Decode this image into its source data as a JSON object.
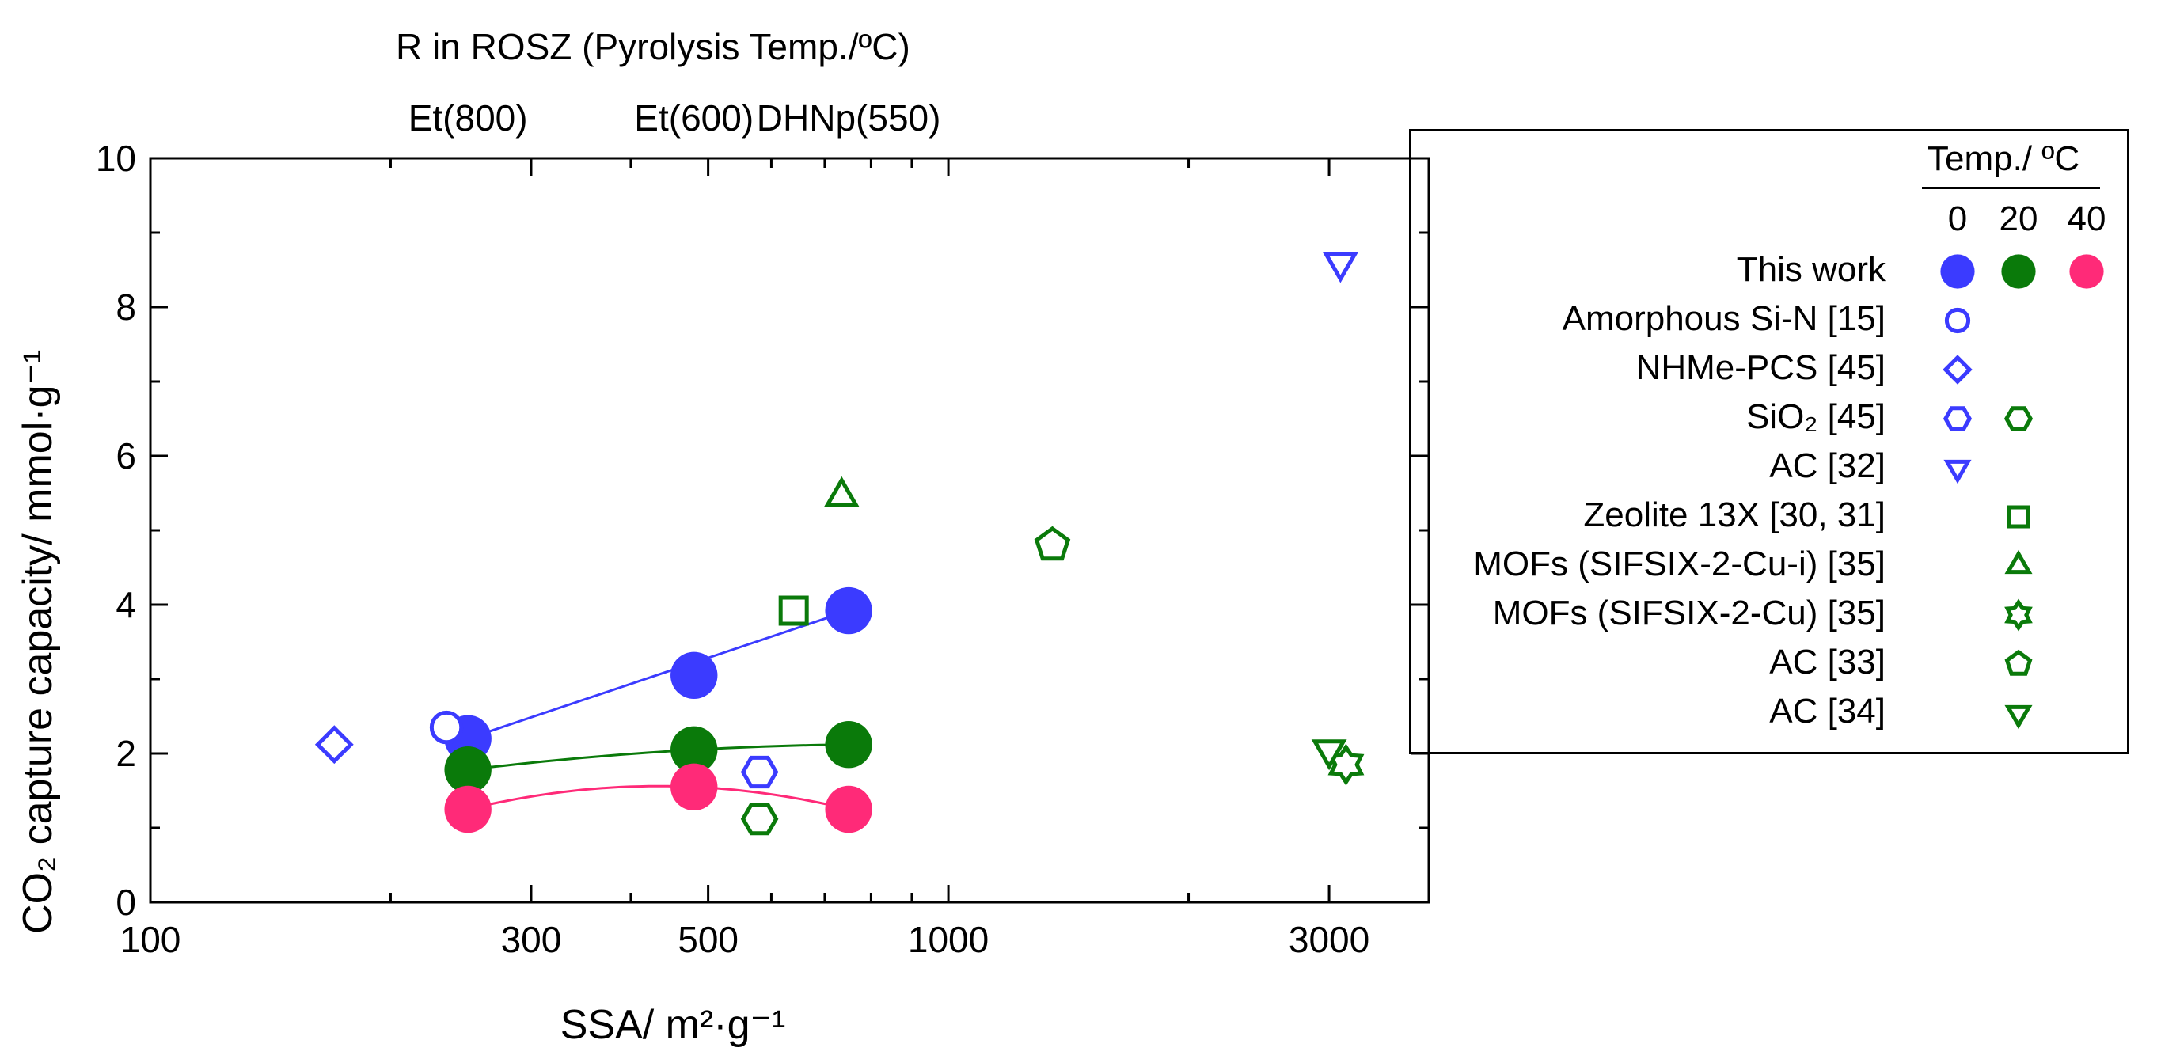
{
  "chart_data": {
    "type": "scatter",
    "x_scale": "log",
    "xlim": [
      100,
      4000
    ],
    "ylim": [
      0,
      10
    ],
    "xlabel": "SSA/ m²·g⁻¹",
    "ylabel": "CO₂ capture capacity/ mmol·g⁻¹",
    "x_ticks": [
      "100",
      "300",
      "500",
      "1000",
      "3000"
    ],
    "x_tick_values": [
      100,
      300,
      500,
      1000,
      3000
    ],
    "y_ticks": [
      "0",
      "2",
      "4",
      "6",
      "8",
      "10"
    ],
    "y_tick_values": [
      0,
      2,
      4,
      6,
      8,
      10
    ],
    "top_axis": {
      "title": "R in ROSZ (Pyrolysis Temp./ºC)",
      "labels": [
        "Et(800)",
        "Et(600)",
        "DHNp(550)"
      ],
      "positions": [
        250,
        480,
        750
      ]
    },
    "series": [
      {
        "name": "This work",
        "group": "0",
        "marker": "filled-circle",
        "color": "#3b3bff",
        "x": [
          250,
          480,
          750
        ],
        "y": [
          2.2,
          3.05,
          3.92
        ],
        "fit": "line"
      },
      {
        "name": "This work",
        "group": "20",
        "marker": "filled-circle",
        "color": "#0a7a0a",
        "x": [
          250,
          480,
          750
        ],
        "y": [
          1.78,
          2.05,
          2.12
        ],
        "fit": "curve"
      },
      {
        "name": "This work",
        "group": "40",
        "marker": "filled-circle",
        "color": "#ff2a78",
        "x": [
          250,
          480,
          750
        ],
        "y": [
          1.25,
          1.55,
          1.25
        ],
        "fit": "curve"
      },
      {
        "name": "Amorphous Si-N [15]",
        "group": "0",
        "marker": "circle",
        "color": "#3b3bff",
        "x": [
          235
        ],
        "y": [
          2.35
        ]
      },
      {
        "name": "NHMe-PCS [45]",
        "group": "0",
        "marker": "diamond",
        "color": "#3b3bff",
        "x": [
          170
        ],
        "y": [
          2.12
        ]
      },
      {
        "name": "SiO2 [45]",
        "group": "0",
        "marker": "hexagon",
        "color": "#3b3bff",
        "x": [
          580
        ],
        "y": [
          1.75
        ]
      },
      {
        "name": "SiO2 [45]",
        "group": "20",
        "marker": "hexagon",
        "color": "#0a7a0a",
        "x": [
          580
        ],
        "y": [
          1.12
        ]
      },
      {
        "name": "AC [32]",
        "group": "0",
        "marker": "triangle-down",
        "color": "#3b3bff",
        "x": [
          3100
        ],
        "y": [
          8.6
        ]
      },
      {
        "name": "Zeolite 13X [30, 31]",
        "group": "20",
        "marker": "square",
        "color": "#0a7a0a",
        "x": [
          640
        ],
        "y": [
          3.92
        ]
      },
      {
        "name": "MOFs (SIFSIX-2-Cu-i) [35]",
        "group": "20",
        "marker": "triangle-up",
        "color": "#0a7a0a",
        "x": [
          735
        ],
        "y": [
          5.45
        ]
      },
      {
        "name": "MOFs (SIFSIX-2-Cu) [35]",
        "group": "20",
        "marker": "star6",
        "color": "#0a7a0a",
        "x": [
          3150
        ],
        "y": [
          1.85
        ]
      },
      {
        "name": "AC [33]",
        "group": "20",
        "marker": "pentagon",
        "color": "#0a7a0a",
        "x": [
          1350
        ],
        "y": [
          4.8
        ]
      },
      {
        "name": "AC [34]",
        "group": "20",
        "marker": "triangle-down",
        "color": "#0a7a0a",
        "x": [
          3000
        ],
        "y": [
          2.05
        ]
      }
    ]
  },
  "legend": {
    "header": "Temp./ ºC",
    "columns": [
      "0",
      "20",
      "40"
    ],
    "rows": [
      {
        "label": "This work",
        "symbols": [
          {
            "col": 0,
            "marker": "filled-circle",
            "color": "#3b3bff"
          },
          {
            "col": 1,
            "marker": "filled-circle",
            "color": "#0a7a0a"
          },
          {
            "col": 2,
            "marker": "filled-circle",
            "color": "#ff2a78"
          }
        ]
      },
      {
        "label": "Amorphous Si-N [15]",
        "symbols": [
          {
            "col": 0,
            "marker": "circle",
            "color": "#3b3bff"
          }
        ]
      },
      {
        "label": "NHMe-PCS [45]",
        "symbols": [
          {
            "col": 0,
            "marker": "diamond",
            "color": "#3b3bff"
          }
        ]
      },
      {
        "label": "SiO₂ [45]",
        "symbols": [
          {
            "col": 0,
            "marker": "hexagon",
            "color": "#3b3bff"
          },
          {
            "col": 1,
            "marker": "hexagon",
            "color": "#0a7a0a"
          }
        ]
      },
      {
        "label": "AC [32]",
        "symbols": [
          {
            "col": 0,
            "marker": "triangle-down",
            "color": "#3b3bff"
          }
        ]
      },
      {
        "label": "Zeolite 13X [30, 31]",
        "symbols": [
          {
            "col": 1,
            "marker": "square",
            "color": "#0a7a0a"
          }
        ]
      },
      {
        "label": "MOFs (SIFSIX-2-Cu-i) [35]",
        "symbols": [
          {
            "col": 1,
            "marker": "triangle-up",
            "color": "#0a7a0a"
          }
        ]
      },
      {
        "label": "MOFs (SIFSIX-2-Cu)  [35]",
        "symbols": [
          {
            "col": 1,
            "marker": "star6",
            "color": "#0a7a0a"
          }
        ]
      },
      {
        "label": "AC [33]",
        "symbols": [
          {
            "col": 1,
            "marker": "pentagon",
            "color": "#0a7a0a"
          }
        ]
      },
      {
        "label": "AC [34]",
        "symbols": [
          {
            "col": 1,
            "marker": "triangle-down",
            "color": "#0a7a0a"
          }
        ]
      }
    ]
  }
}
